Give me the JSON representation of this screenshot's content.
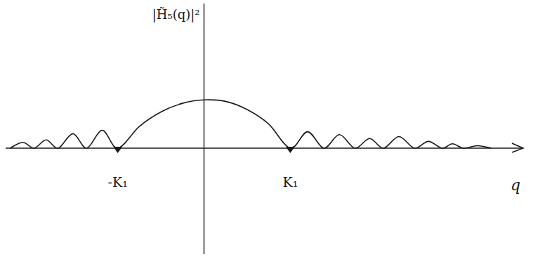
{
  "chart_data": {
    "type": "line",
    "y_label": "|H̃₅(q)|²",
    "x_label": "q",
    "x": [
      -2.25,
      -2.1,
      -1.97,
      -1.83,
      -1.69,
      -1.52,
      -1.36,
      -1.18,
      -1.0,
      -0.75,
      -0.5,
      -0.25,
      0.0,
      0.25,
      0.5,
      0.75,
      1.0,
      1.2,
      1.39,
      1.57,
      1.75,
      1.92,
      2.08,
      2.26,
      2.44,
      2.6,
      2.76,
      2.88,
      3.01,
      3.17,
      3.33
    ],
    "series": [
      {
        "name": "|H̃₅(q)|²",
        "color": "#1a1a1a",
        "values": [
          0.0,
          0.12,
          0.0,
          0.17,
          0.0,
          0.3,
          0.0,
          0.37,
          0.0,
          0.45,
          0.75,
          0.93,
          1.0,
          0.97,
          0.8,
          0.5,
          0.0,
          0.34,
          0.0,
          0.28,
          0.0,
          0.2,
          0.0,
          0.24,
          0.0,
          0.14,
          0.0,
          0.09,
          0.0,
          0.05,
          0.0
        ]
      }
    ],
    "xlim": [
      -2.3,
      3.7
    ],
    "ylim": [
      -2.2,
      3
    ],
    "xticks": [
      {
        "value": -1,
        "label": "-K₁"
      },
      {
        "value": 1,
        "label": "K₁"
      }
    ],
    "tick_labels": "x",
    "grid": false
  }
}
